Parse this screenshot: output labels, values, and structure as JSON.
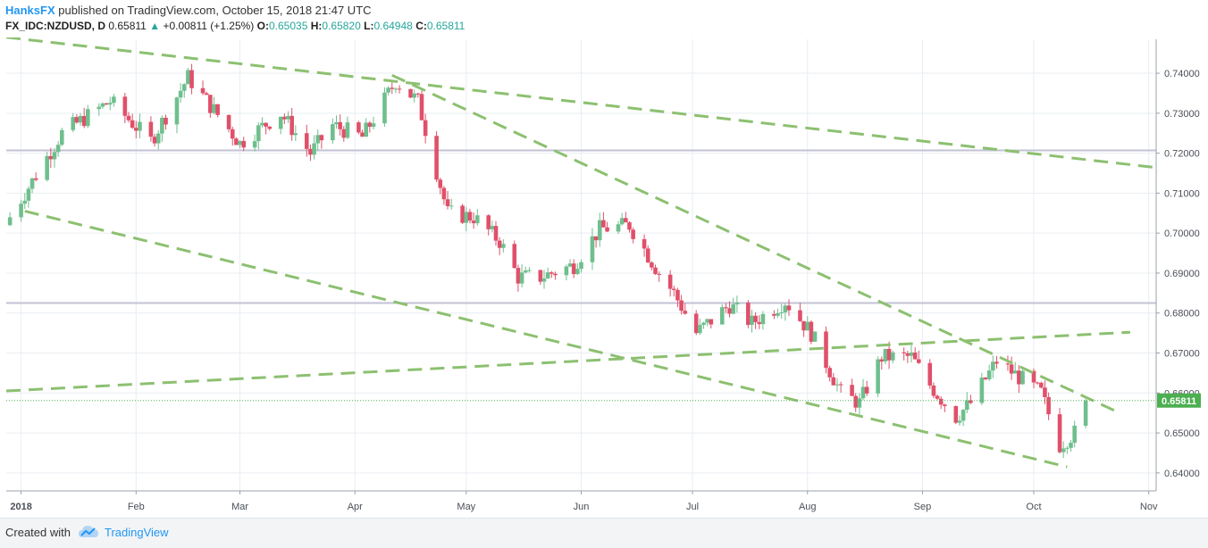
{
  "header": {
    "brand": "HanksFX",
    "published": "published on TradingView.com, October 15, 2018 21:47 UTC",
    "symbol": "FX_IDC:NZDUSD, D",
    "last": "0.65811",
    "change_arrow": "▲",
    "change": "+0.00811 (+1.25%)",
    "o_label": "O:",
    "o_value": "0.65035",
    "h_label": "H:",
    "h_value": "0.65820",
    "l_label": "L:",
    "l_value": "0.64948",
    "c_label": "C:",
    "c_value": "0.65811"
  },
  "footer": {
    "created_with": "Created with",
    "tradingview": "TradingView",
    "logo_icon": "tradingview-cloud-icon"
  },
  "colors": {
    "up": "#6fbf8e",
    "down": "#e0506a",
    "trendline": "#8cc070",
    "level": "#c2c2d6",
    "grid": "#e9edf2",
    "price_tag": "#4caf50"
  },
  "chart_data": {
    "type": "candlestick",
    "symbol": "FX_IDC:NZDUSD",
    "interval": "D",
    "ylim": [
      0.6355,
      0.7485
    ],
    "y_ticks": [
      "0.74000",
      "0.73000",
      "0.72000",
      "0.71000",
      "0.70000",
      "0.69000",
      "0.68000",
      "0.67000",
      "0.66000",
      "0.65000",
      "0.64000"
    ],
    "x_ticks": [
      {
        "label": "2018",
        "date": "2018-01-01"
      },
      {
        "label": "Feb",
        "date": "2018-02-01"
      },
      {
        "label": "Mar",
        "date": "2018-03-01"
      },
      {
        "label": "Apr",
        "date": "2018-04-01"
      },
      {
        "label": "May",
        "date": "2018-05-01"
      },
      {
        "label": "Jun",
        "date": "2018-06-01"
      },
      {
        "label": "Jul",
        "date": "2018-07-01"
      },
      {
        "label": "Aug",
        "date": "2018-08-01"
      },
      {
        "label": "Sep",
        "date": "2018-09-01"
      },
      {
        "label": "Oct",
        "date": "2018-10-01"
      },
      {
        "label": "Nov",
        "date": "2018-11-01"
      }
    ],
    "x_range": [
      "2017-12-28",
      "2018-11-03"
    ],
    "current_price": "0.65811",
    "horizontal_levels": [
      0.7207,
      0.6825
    ],
    "trendlines": [
      {
        "from": [
          "2017-12-28",
          0.749
        ],
        "to": [
          "2018-11-03",
          0.7164
        ]
      },
      {
        "from": [
          "2018-04-11",
          0.7395
        ],
        "to": [
          "2018-10-23",
          0.6555
        ]
      },
      {
        "from": [
          "2018-01-02",
          0.7055
        ],
        "to": [
          "2018-10-10",
          0.6415
        ]
      },
      {
        "from": [
          "2017-12-28",
          0.6605
        ],
        "to": [
          "2018-10-27",
          0.6752
        ]
      }
    ],
    "anchor_points": [
      {
        "date": "2017-12-29",
        "close": 0.704
      },
      {
        "date": "2018-01-12",
        "close": 0.725
      },
      {
        "date": "2018-01-25",
        "close": 0.733
      },
      {
        "date": "2018-02-05",
        "close": 0.723
      },
      {
        "date": "2018-02-15",
        "close": 0.739
      },
      {
        "date": "2018-03-01",
        "close": 0.7225
      },
      {
        "date": "2018-03-12",
        "close": 0.73
      },
      {
        "date": "2018-03-20",
        "close": 0.72
      },
      {
        "date": "2018-03-26",
        "close": 0.727
      },
      {
        "date": "2018-04-03",
        "close": 0.724
      },
      {
        "date": "2018-04-12",
        "close": 0.738
      },
      {
        "date": "2018-04-18",
        "close": 0.733
      },
      {
        "date": "2018-04-26",
        "close": 0.705
      },
      {
        "date": "2018-05-03",
        "close": 0.704
      },
      {
        "date": "2018-05-10",
        "close": 0.698
      },
      {
        "date": "2018-05-15",
        "close": 0.689
      },
      {
        "date": "2018-05-21",
        "close": 0.689
      },
      {
        "date": "2018-05-30",
        "close": 0.692
      },
      {
        "date": "2018-06-06",
        "close": 0.701
      },
      {
        "date": "2018-06-14",
        "close": 0.702
      },
      {
        "date": "2018-06-22",
        "close": 0.69
      },
      {
        "date": "2018-06-26",
        "close": 0.685
      },
      {
        "date": "2018-07-02",
        "close": 0.675
      },
      {
        "date": "2018-07-11",
        "close": 0.682
      },
      {
        "date": "2018-07-17",
        "close": 0.6775
      },
      {
        "date": "2018-07-26",
        "close": 0.683
      },
      {
        "date": "2018-08-02",
        "close": 0.675
      },
      {
        "date": "2018-08-10",
        "close": 0.66
      },
      {
        "date": "2018-08-15",
        "close": 0.6575
      },
      {
        "date": "2018-08-21",
        "close": 0.669
      },
      {
        "date": "2018-08-29",
        "close": 0.669
      },
      {
        "date": "2018-09-03",
        "close": 0.662
      },
      {
        "date": "2018-09-10",
        "close": 0.654
      },
      {
        "date": "2018-09-14",
        "close": 0.6575
      },
      {
        "date": "2018-09-21",
        "close": 0.668
      },
      {
        "date": "2018-09-27",
        "close": 0.664
      },
      {
        "date": "2018-10-03",
        "close": 0.66
      },
      {
        "date": "2018-10-08",
        "close": 0.647
      },
      {
        "date": "2018-10-12",
        "close": 0.65
      },
      {
        "date": "2018-10-15",
        "close": 0.6581
      }
    ]
  }
}
